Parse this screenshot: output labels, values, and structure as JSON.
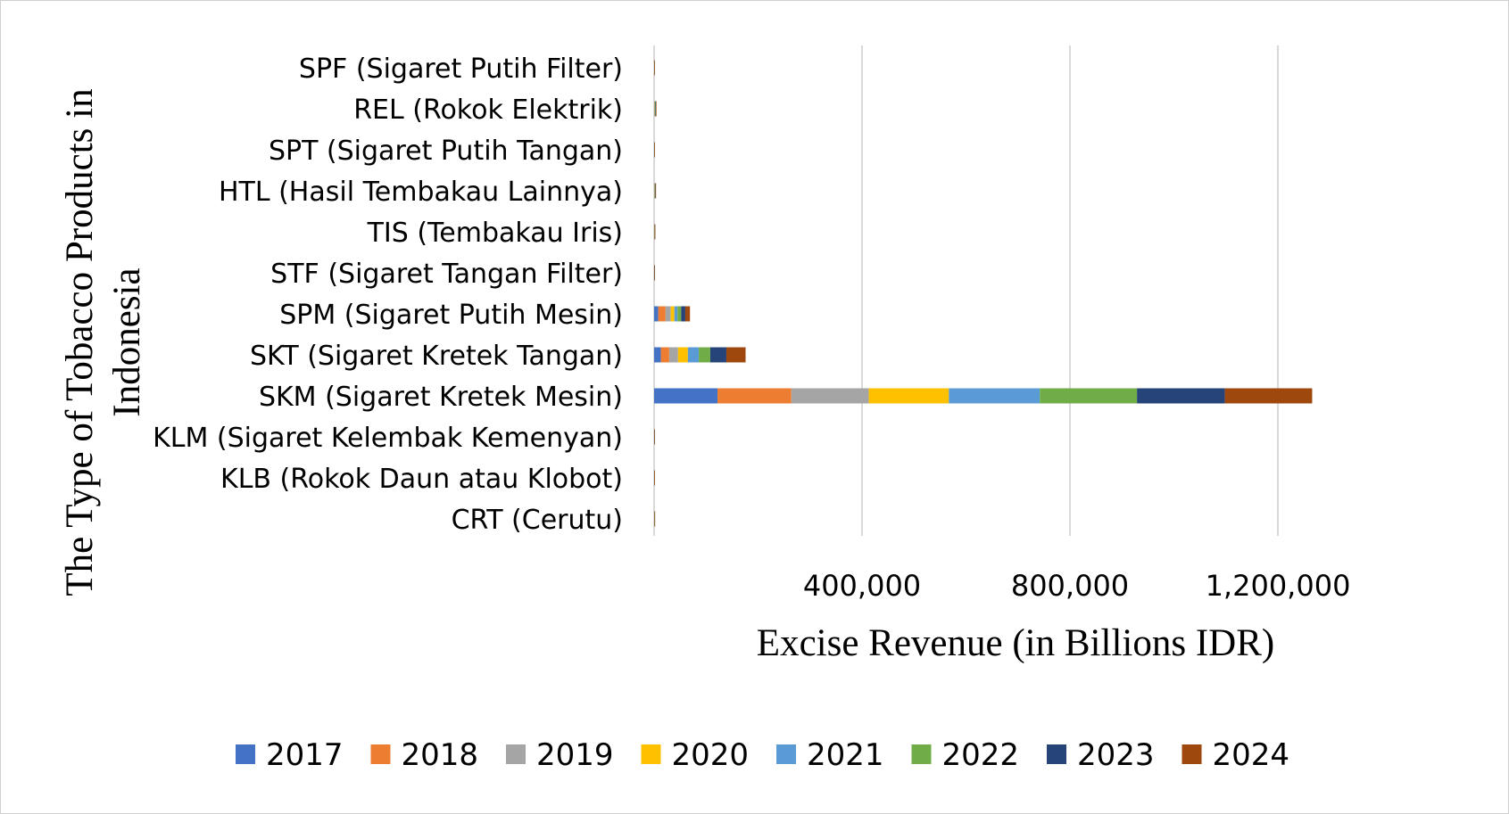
{
  "chart_data": {
    "type": "bar",
    "orientation": "horizontal",
    "stacked": true,
    "title": "",
    "xlabel": "Excise Revenue (in Billions IDR)",
    "ylabel_line1": "The Type of Tobacco Products in",
    "ylabel_line2": "Indonesia",
    "xlim": [
      0,
      1500000
    ],
    "xticks": [
      400000,
      800000,
      1200000
    ],
    "xtick_labels": [
      "400,000",
      "800,000",
      "1,200,000"
    ],
    "grid": true,
    "legend_position": "bottom",
    "categories": [
      "SPF (Sigaret Putih Filter)",
      "REL (Rokok Elektrik)",
      "SPT (Sigaret Putih Tangan)",
      "HTL (Hasil Tembakau Lainnya)",
      "TIS (Tembakau Iris)",
      "STF (Sigaret Tangan Filter)",
      "SPM (Sigaret Putih Mesin)",
      "SKT (Sigaret Kretek Tangan)",
      "SKM (Sigaret Kretek Mesin)",
      "KLM (Sigaret Kelembak Kemenyan)",
      "KLB (Rokok Daun atau Klobot)",
      "CRT (Cerutu)"
    ],
    "series": [
      {
        "name": "2017",
        "color": "#4472C4",
        "values": [
          5,
          0,
          10,
          100,
          150,
          40,
          8000,
          13000,
          122000,
          20,
          5,
          100
        ]
      },
      {
        "name": "2018",
        "color": "#ED7D31",
        "values": [
          5,
          300,
          10,
          150,
          160,
          40,
          14000,
          16000,
          142000,
          20,
          5,
          110
        ]
      },
      {
        "name": "2019",
        "color": "#A5A5A5",
        "values": [
          5,
          400,
          10,
          300,
          170,
          40,
          10000,
          17000,
          149000,
          20,
          5,
          120
        ]
      },
      {
        "name": "2020",
        "color": "#FFC000",
        "values": [
          5,
          500,
          10,
          400,
          180,
          40,
          7000,
          19000,
          154000,
          20,
          5,
          130
        ]
      },
      {
        "name": "2021",
        "color": "#5B9BD5",
        "values": [
          5,
          600,
          10,
          500,
          190,
          40,
          6000,
          21000,
          175000,
          20,
          5,
          140
        ]
      },
      {
        "name": "2022",
        "color": "#70AD47",
        "values": [
          5,
          800,
          10,
          600,
          200,
          40,
          7000,
          22000,
          187000,
          20,
          5,
          150
        ]
      },
      {
        "name": "2023",
        "color": "#264478",
        "values": [
          5,
          900,
          10,
          650,
          210,
          40,
          8000,
          31000,
          169000,
          20,
          5,
          160
        ]
      },
      {
        "name": "2024",
        "color": "#9E480E",
        "values": [
          5,
          1000,
          10,
          700,
          220,
          40,
          9000,
          37000,
          168000,
          20,
          5,
          170
        ]
      }
    ]
  }
}
